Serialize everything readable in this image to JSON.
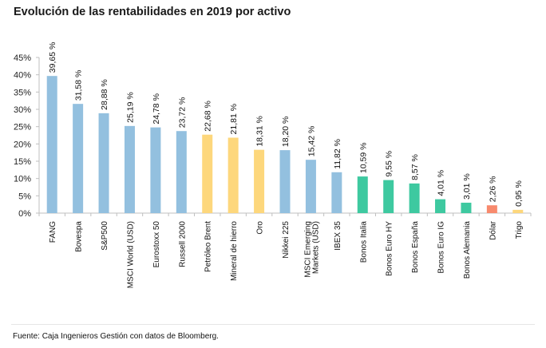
{
  "chart_data": {
    "type": "bar",
    "title": "Evolución de las rentabilidades en 2019 por activo",
    "xlabel": "",
    "ylabel": "",
    "ylim": [
      0,
      45
    ],
    "yticks": [
      0,
      5,
      10,
      15,
      20,
      25,
      30,
      35,
      40,
      45
    ],
    "ytick_labels": [
      "0%",
      "5%",
      "10%",
      "15%",
      "20%",
      "25%",
      "30%",
      "35%",
      "40%",
      "45%"
    ],
    "grid": false,
    "legend": "none",
    "categories": [
      [
        "FANG"
      ],
      [
        "Bovespa"
      ],
      [
        "S&P500"
      ],
      [
        "MSCI World (USD)"
      ],
      [
        "Eurostoxx 50"
      ],
      [
        "Russell 2000"
      ],
      [
        "Petróleo Brent"
      ],
      [
        "Mineral de hierro"
      ],
      [
        "Oro"
      ],
      [
        "Nikkei 225"
      ],
      [
        "MSCI Emerging",
        "Markets (USD)"
      ],
      [
        "IBEX 35"
      ],
      [
        "Bonos Italia"
      ],
      [
        "Bonos Euro HY"
      ],
      [
        "Bonos España"
      ],
      [
        "Bonos Euro IG"
      ],
      [
        "Bonos Alemania"
      ],
      [
        "Dólar"
      ],
      [
        "Trigo"
      ]
    ],
    "values": [
      39.65,
      31.58,
      28.88,
      25.19,
      24.78,
      23.72,
      22.68,
      21.81,
      18.31,
      18.2,
      15.42,
      11.82,
      10.59,
      9.55,
      8.57,
      4.01,
      3.01,
      2.26,
      0.95
    ],
    "data_labels": [
      "39,65 %",
      "31,58 %",
      "28,88 %",
      "25,19 %",
      "24,78 %",
      "23,72 %",
      "22,68 %",
      "21,81 %",
      "18,31 %",
      "18,20 %",
      "15,42 %",
      "11,82 %",
      "10,59 %",
      "9,55 %",
      "8,57 %",
      "4,01 %",
      "3,01 %",
      "2,26 %",
      "0,95 %"
    ],
    "groups": [
      "equity",
      "equity",
      "equity",
      "equity",
      "equity",
      "equity",
      "commodity",
      "commodity",
      "commodity",
      "equity",
      "equity",
      "equity",
      "bond",
      "bond",
      "bond",
      "bond",
      "bond",
      "currency",
      "commodity"
    ],
    "group_colors": {
      "equity": "#93c0df",
      "commodity": "#fdd77c",
      "bond": "#3ec9a0",
      "currency": "#f88a6d"
    }
  },
  "footer": {
    "source": "Fuente: Caja Ingenieros Gestión con datos de Bloomberg."
  }
}
